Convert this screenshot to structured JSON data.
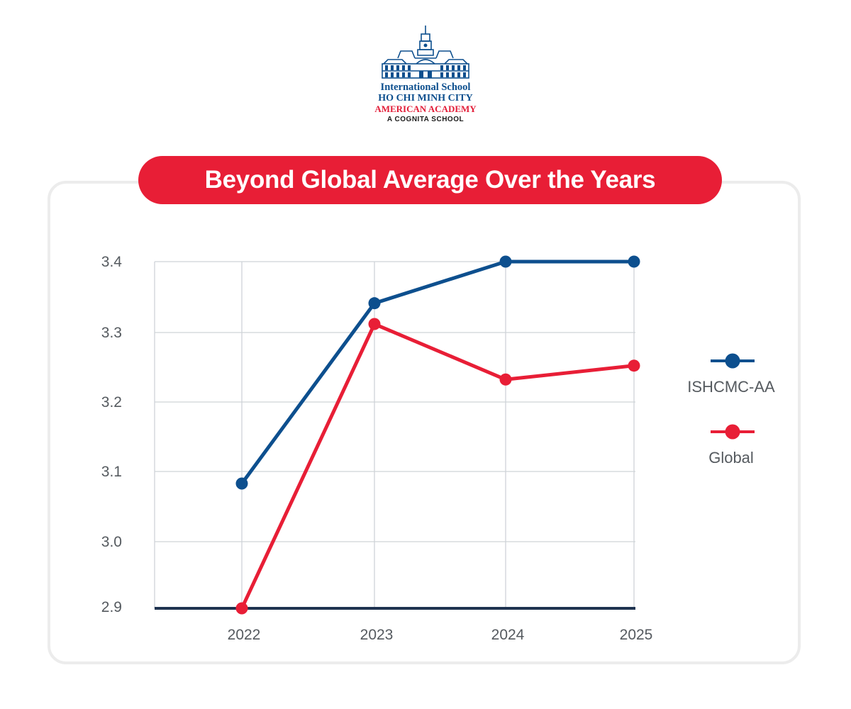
{
  "logo": {
    "line1": "International School",
    "line2": "HO CHI MINH CITY",
    "line3": "AMERICAN ACADEMY",
    "line4": "A COGNITA SCHOOL"
  },
  "colors": {
    "blue": "#0d4f8e",
    "red": "#e81e36",
    "grid": "#cfd3d8",
    "axis": "#1f3350"
  },
  "chart_data": {
    "type": "line",
    "title": "Beyond Global Average Over the Years",
    "categories": [
      "2022",
      "2023",
      "2024",
      "2025"
    ],
    "series": [
      {
        "name": "ISHCMC-AA",
        "color": "#0d4f8e",
        "values": [
          3.08,
          3.34,
          3.4,
          3.4
        ]
      },
      {
        "name": "Global",
        "color": "#e81e36",
        "values": [
          2.9,
          3.31,
          3.23,
          3.25
        ]
      }
    ],
    "yticks": [
      "2.9",
      "3.0",
      "3.1",
      "3.2",
      "3.3",
      "3.4"
    ],
    "ylim": [
      2.9,
      3.4
    ],
    "xlabel": "",
    "ylabel": "",
    "grid": true,
    "legend_position": "right"
  }
}
